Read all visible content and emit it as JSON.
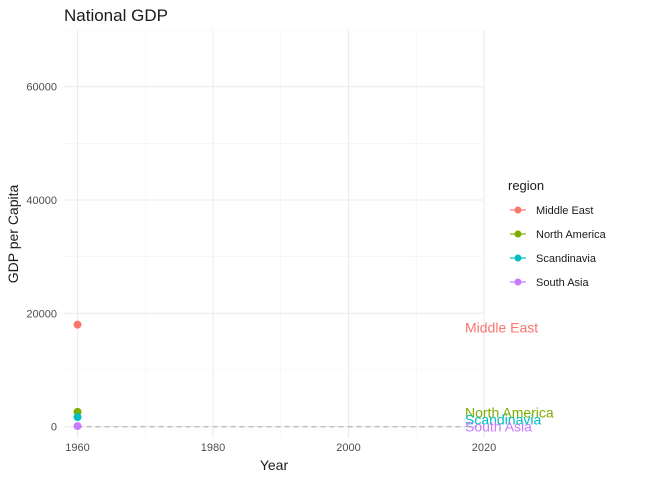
{
  "chart_data": {
    "type": "line",
    "title": "National GDP",
    "xlabel": "Year",
    "ylabel": "GDP per Capita",
    "xlim": [
      1958,
      2020
    ],
    "ylim": [
      -2000,
      70000
    ],
    "x_ticks": [
      1960,
      1980,
      2000,
      2020
    ],
    "x_tick_labels": [
      "1960",
      "1980",
      "2000",
      "2020"
    ],
    "y_ticks": [
      0,
      20000,
      40000,
      60000
    ],
    "y_tick_labels": [
      "0",
      "20000",
      "40000",
      "60000"
    ],
    "grid": true,
    "legend_title": "region",
    "legend_position": "right",
    "series": [
      {
        "name": "Middle East",
        "color": "#F8766D",
        "x": [
          1960
        ],
        "y": [
          18000
        ],
        "end_label_y": 17500
      },
      {
        "name": "North America",
        "color": "#7CAE00",
        "x": [
          1960
        ],
        "y": [
          2600
        ],
        "end_label_y": 2500
      },
      {
        "name": "Scandinavia",
        "color": "#00BFC4",
        "x": [
          1960
        ],
        "y": [
          1700
        ],
        "end_label_y": 1300
      },
      {
        "name": "South Asia",
        "color": "#C77CFF",
        "x": [
          1960
        ],
        "y": [
          100
        ],
        "end_label_y": 0
      }
    ],
    "reference_line": {
      "y": 0,
      "style": "dashed",
      "color": "#bdbdbd"
    }
  }
}
